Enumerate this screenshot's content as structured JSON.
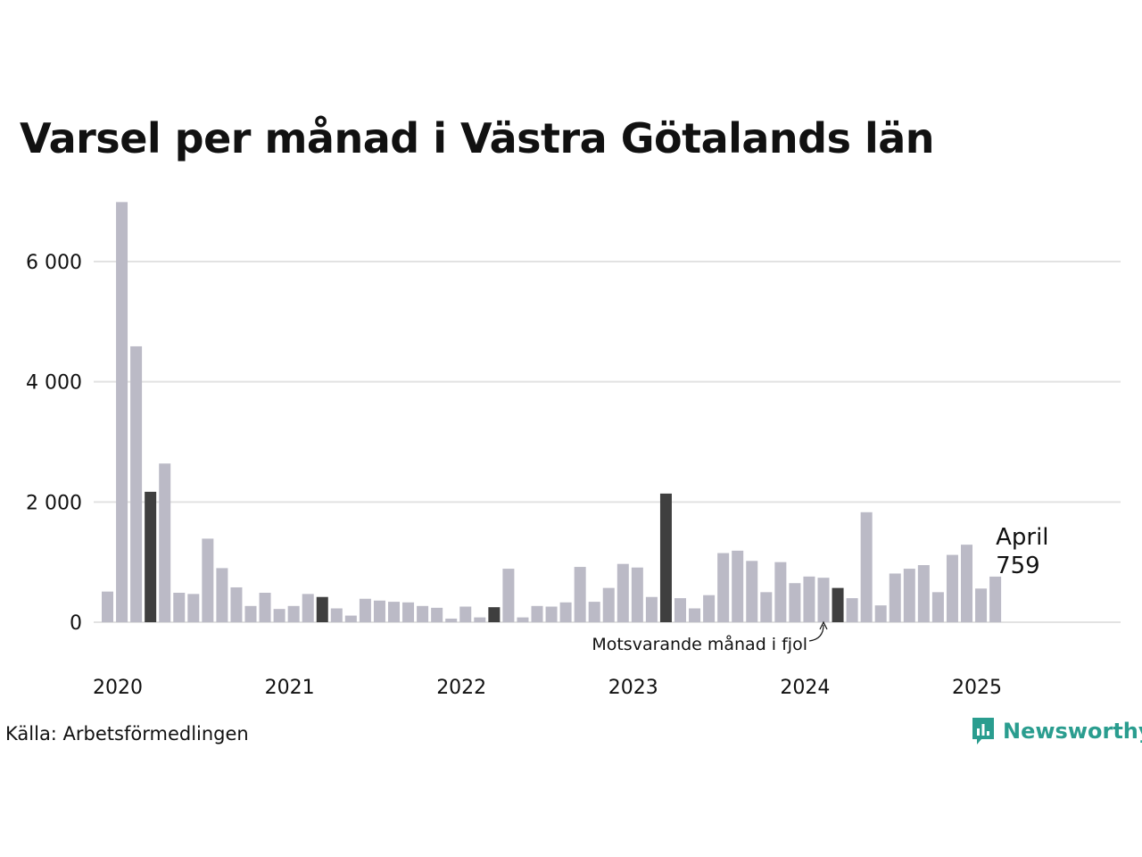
{
  "title": "Varsel per månad i Västra Götalands län",
  "source": "Källa: Arbetsförmedlingen",
  "brand": {
    "name": "Newsworthy",
    "icon": "newsworthy-logo-icon"
  },
  "colors": {
    "bar": "#bbbac6",
    "previous_year": "#3f3f3f",
    "current": "#2a9d8f",
    "grid": "#e2e2e2",
    "brand": "#2a9d8f"
  },
  "chart_data": {
    "type": "bar",
    "start": "2020-01",
    "months_axis": "monthly, January 2020 to April 2025",
    "values": [
      510,
      6990,
      4590,
      2170,
      2640,
      490,
      470,
      1390,
      900,
      580,
      270,
      490,
      220,
      270,
      470,
      420,
      230,
      110,
      390,
      360,
      340,
      330,
      270,
      240,
      60,
      260,
      80,
      250,
      890,
      80,
      270,
      260,
      330,
      920,
      340,
      570,
      970,
      910,
      420,
      2140,
      400,
      230,
      450,
      1150,
      1190,
      1020,
      500,
      1000,
      650,
      760,
      740,
      570,
      400,
      1830,
      280,
      810,
      890,
      950,
      500,
      1120,
      1290,
      560,
      759
    ],
    "highlight_previous_year": [
      "2020-04",
      "2021-04",
      "2022-04",
      "2023-04",
      "2024-04"
    ],
    "highlight_current": "2025-04",
    "x_ticks": [
      "2020",
      "2021",
      "2022",
      "2023",
      "2024",
      "2025"
    ],
    "y_ticks": [
      "0",
      "2 000",
      "4 000",
      "6 000"
    ],
    "y_tick_values": [
      0,
      2000,
      4000,
      6000
    ],
    "ylim": [
      0,
      7000
    ],
    "grid": true,
    "annotation_label": "April",
    "annotation_value": "759",
    "annotation_previous": "Motsvarande månad i fjol"
  }
}
